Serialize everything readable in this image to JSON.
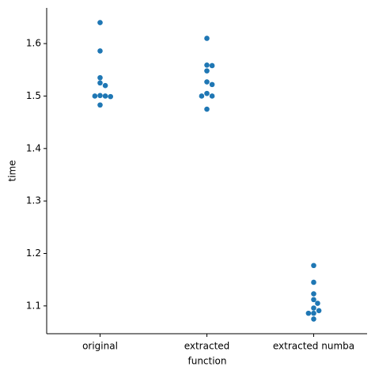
{
  "chart_data": {
    "type": "swarm",
    "xlabel": "function",
    "ylabel": "time",
    "categories": [
      "original",
      "extracted",
      "extracted numba"
    ],
    "values": [
      [
        1.64,
        1.586,
        1.535,
        1.525,
        1.52,
        1.501,
        1.5,
        1.5,
        1.499,
        1.483
      ],
      [
        1.61,
        1.559,
        1.558,
        1.548,
        1.527,
        1.522,
        1.505,
        1.5,
        1.5,
        1.475
      ],
      [
        1.177,
        1.145,
        1.123,
        1.112,
        1.105,
        1.096,
        1.091,
        1.086,
        1.086,
        1.075
      ]
    ],
    "color": "#1f77b4",
    "ylim": [
      1.047,
      1.668
    ],
    "yticks": [
      1.1,
      1.2,
      1.3,
      1.4,
      1.5,
      1.6
    ]
  }
}
